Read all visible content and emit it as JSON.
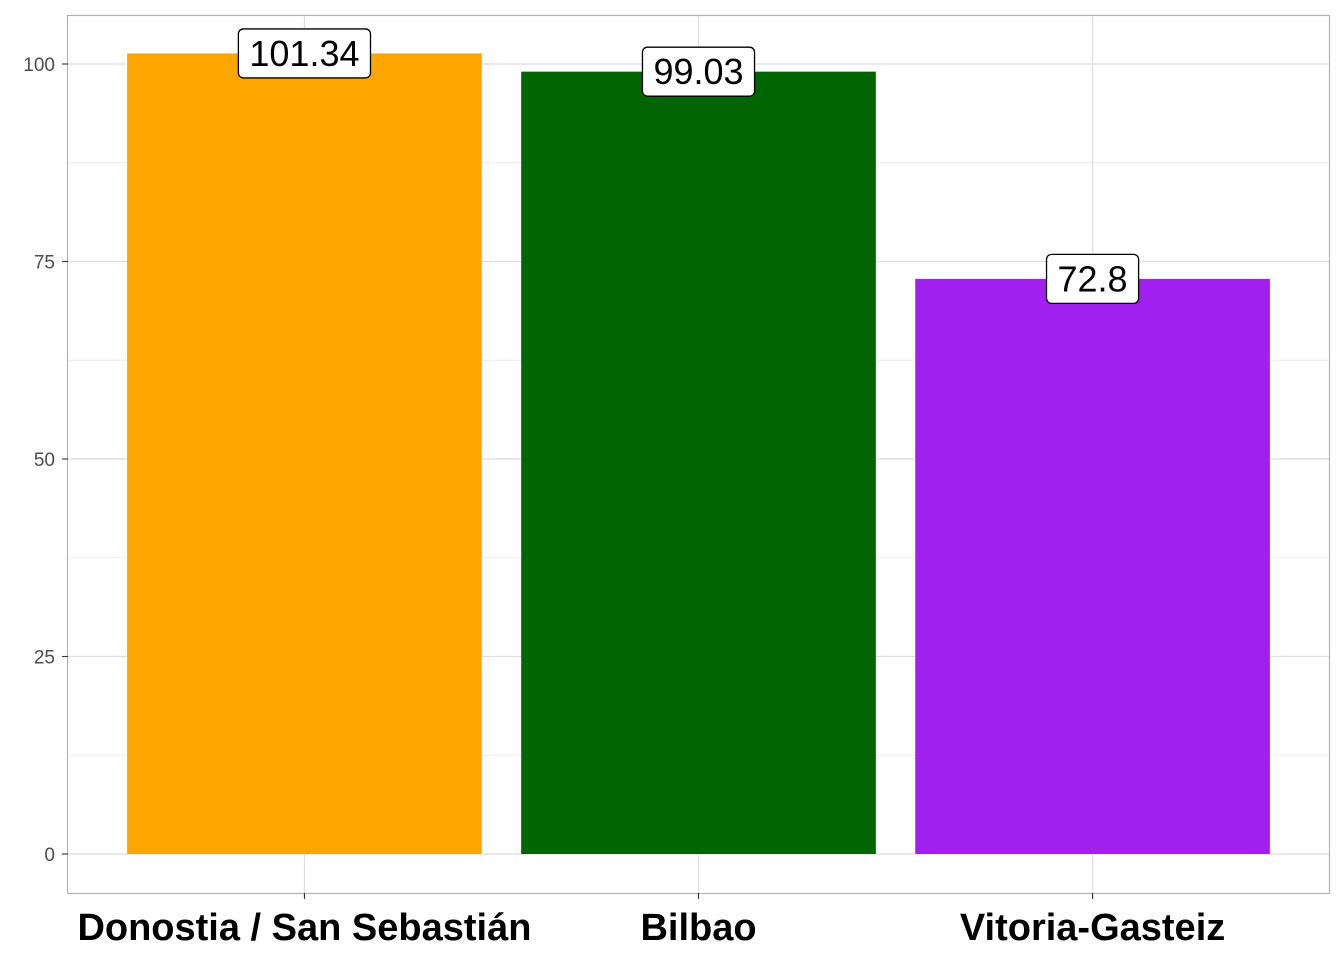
{
  "chart_data": {
    "type": "bar",
    "categories": [
      "Donostia / San Sebastián",
      "Bilbao",
      "Vitoria-Gasteiz"
    ],
    "values": [
      101.34,
      99.03,
      72.8
    ],
    "value_labels": [
      "101.34",
      "99.03",
      "72.8"
    ],
    "colors": [
      "#FFA500",
      "#006400",
      "#A020F0"
    ],
    "title": "",
    "xlabel": "",
    "ylabel": "",
    "ylim": [
      -5,
      106.4
    ],
    "yticks": [
      0,
      25,
      50,
      75,
      100
    ],
    "grid": true,
    "legend": "none"
  }
}
